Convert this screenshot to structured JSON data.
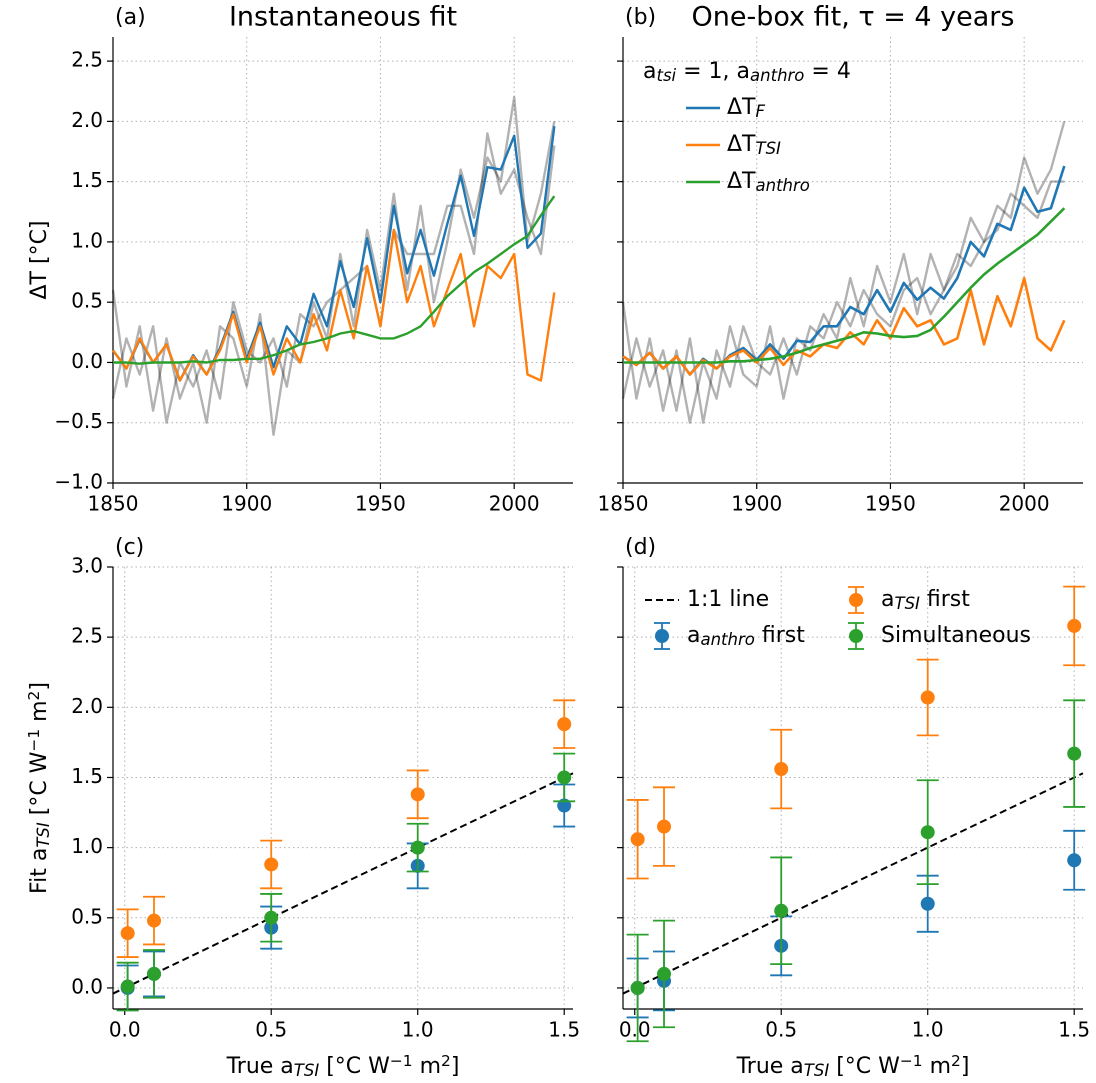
{
  "chart_data": [
    {
      "type": "line",
      "label": "(a)",
      "title": "Instantaneous fit",
      "x": [
        1850,
        1855,
        1860,
        1865,
        1870,
        1875,
        1880,
        1885,
        1890,
        1895,
        1900,
        1905,
        1910,
        1915,
        1920,
        1925,
        1930,
        1935,
        1940,
        1945,
        1950,
        1955,
        1960,
        1965,
        1970,
        1975,
        1980,
        1985,
        1990,
        1995,
        2000,
        2005,
        2010,
        2015
      ],
      "xlim": [
        1850,
        2022
      ],
      "xticks": [
        1850,
        1900,
        1950,
        2000
      ],
      "ylim": [
        -1.0,
        2.7
      ],
      "yticks": [
        {
          "value": -1,
          "label": "−1.0"
        },
        {
          "value": -0.5,
          "label": "−0.5"
        },
        {
          "value": 0,
          "label": "0.0"
        },
        0.5,
        {
          "value": 1,
          "label": "1.0"
        },
        1.5,
        {
          "value": 2,
          "label": "2.0"
        },
        2.5
      ],
      "ylabel": [
        "ΔT [°C]"
      ],
      "grid": true,
      "series": [
        {
          "color": "rgba(0,0,0,0.3)",
          "values": [
            0.6,
            -0.2,
            0.3,
            -0.4,
            0.2,
            -0.3,
            0.0,
            -0.5,
            0.3,
            0.2,
            -0.2,
            0.4,
            -0.6,
            0.1,
            0.0,
            0.5,
            0.2,
            0.9,
            0.3,
            1.1,
            0.6,
            1.4,
            0.6,
            1.3,
            0.5,
            1.0,
            1.6,
            1.2,
            1.7,
            1.5,
            2.2,
            1.0,
            1.4,
            2.0
          ]
        },
        {
          "color": "rgba(0,0,0,0.3)",
          "values": [
            -0.3,
            0.2,
            -0.1,
            0.3,
            -0.5,
            0.0,
            -0.2,
            0.1,
            -0.3,
            0.5,
            0.1,
            0.0,
            0.2,
            -0.2,
            0.4,
            0.3,
            0.5,
            0.6,
            0.7,
            0.8,
            0.3,
            1.1,
            0.9,
            0.9,
            0.9,
            1.3,
            1.3,
            0.9,
            1.9,
            1.4,
            1.6,
            1.2,
            0.9,
            1.8
          ]
        },
        {
          "color": "#1f77b4",
          "values": [
            0.1,
            -0.05,
            0.19,
            0.0,
            0.15,
            -0.15,
            0.06,
            -0.1,
            0.12,
            0.42,
            0.03,
            0.33,
            -0.04,
            0.3,
            0.15,
            0.57,
            0.3,
            0.84,
            0.46,
            1.03,
            0.5,
            1.3,
            0.74,
            1.1,
            0.72,
            1.15,
            1.55,
            1.05,
            1.62,
            1.6,
            1.88,
            0.95,
            1.07,
            1.96
          ]
        },
        {
          "color": "#ff7f0e",
          "values": [
            0.1,
            -0.05,
            0.2,
            0.0,
            0.15,
            -0.15,
            0.05,
            -0.1,
            0.1,
            0.4,
            0.0,
            0.3,
            -0.1,
            0.2,
            0.0,
            0.4,
            0.1,
            0.6,
            0.2,
            0.8,
            0.3,
            1.1,
            0.5,
            0.8,
            0.3,
            0.6,
            0.9,
            0.3,
            0.8,
            0.7,
            0.9,
            -0.1,
            -0.15,
            0.58
          ]
        },
        {
          "color": "#2ca02c",
          "values": [
            0,
            0,
            -0.01,
            0,
            0,
            0,
            0.01,
            0,
            0.02,
            0.02,
            0.03,
            0.03,
            0.06,
            0.1,
            0.15,
            0.17,
            0.2,
            0.24,
            0.26,
            0.23,
            0.2,
            0.2,
            0.24,
            0.3,
            0.42,
            0.55,
            0.65,
            0.75,
            0.82,
            0.9,
            0.98,
            1.05,
            1.22,
            1.38
          ]
        }
      ]
    },
    {
      "type": "line",
      "label": "(b)",
      "title": "One-box fit, τ = 4 years",
      "x": [
        1850,
        1855,
        1860,
        1865,
        1870,
        1875,
        1880,
        1885,
        1890,
        1895,
        1900,
        1905,
        1910,
        1915,
        1920,
        1925,
        1930,
        1935,
        1940,
        1945,
        1950,
        1955,
        1960,
        1965,
        1970,
        1975,
        1980,
        1985,
        1990,
        1995,
        2000,
        2005,
        2010,
        2015
      ],
      "xlim": [
        1850,
        2022
      ],
      "xticks": [
        1850,
        1900,
        1950,
        2000
      ],
      "ylim": [
        -1.0,
        2.7
      ],
      "yticks": [
        {
          "value": -1,
          "label": "−1.0"
        },
        {
          "value": -0.5,
          "label": "−0.5"
        },
        {
          "value": 0,
          "label": "0.0"
        },
        0.5,
        {
          "value": 1,
          "label": "1.0"
        },
        1.5,
        {
          "value": 2,
          "label": "2.0"
        },
        2.5
      ],
      "sharey": true,
      "grid": true,
      "legend": "upper left",
      "annotation": [
        "a",
        {
          "sub": "tsi"
        },
        " = 1, a",
        {
          "sub": "anthro"
        },
        " = 4"
      ],
      "series": [
        {
          "color": "rgba(0,0,0,0.3)",
          "values": [
            0.5,
            -0.3,
            0.2,
            -0.4,
            0.1,
            -0.5,
            0.0,
            -0.3,
            0.3,
            -0.1,
            -0.2,
            0.3,
            -0.3,
            0.2,
            0.1,
            0.4,
            0.2,
            0.7,
            0.3,
            0.8,
            0.5,
            0.9,
            0.4,
            0.9,
            0.6,
            0.8,
            1.2,
            1.0,
            1.3,
            1.2,
            1.7,
            1.4,
            1.6,
            2.0
          ]
        },
        {
          "color": "rgba(0,0,0,0.3)",
          "values": [
            -0.3,
            0.2,
            -0.2,
            0.1,
            -0.4,
            0.2,
            -0.5,
            0.1,
            -0.2,
            0.3,
            0.0,
            -0.1,
            0.2,
            -0.1,
            0.3,
            0.2,
            0.5,
            0.3,
            0.6,
            0.4,
            0.3,
            0.6,
            0.7,
            0.4,
            0.6,
            0.9,
            0.8,
            1.0,
            1.1,
            1.4,
            1.3,
            1.2,
            1.5,
            1.5
          ]
        },
        {
          "name": [
            "ΔT",
            {
              "sub": "F"
            }
          ],
          "color": "#1f77b4",
          "values": [
            0.05,
            -0.02,
            0.08,
            -0.05,
            0.05,
            -0.1,
            0.03,
            -0.05,
            0.06,
            0.12,
            0.02,
            0.15,
            0.03,
            0.18,
            0.17,
            0.3,
            0.3,
            0.46,
            0.4,
            0.6,
            0.42,
            0.66,
            0.52,
            0.62,
            0.53,
            0.7,
            1.0,
            0.88,
            1.15,
            1.1,
            1.45,
            1.25,
            1.28,
            1.63
          ]
        },
        {
          "name": [
            "ΔT",
            {
              "sub": "TSI"
            }
          ],
          "color": "#ff7f0e",
          "values": [
            0.05,
            -0.02,
            0.08,
            -0.05,
            0.05,
            -0.1,
            0.02,
            -0.05,
            0.05,
            0.1,
            0.0,
            0.12,
            -0.02,
            0.1,
            0.05,
            0.15,
            0.12,
            0.25,
            0.15,
            0.35,
            0.2,
            0.45,
            0.3,
            0.35,
            0.15,
            0.2,
            0.6,
            0.15,
            0.55,
            0.3,
            0.7,
            0.2,
            0.1,
            0.35
          ]
        },
        {
          "name": [
            "ΔT",
            {
              "sub": "anthro"
            }
          ],
          "color": "#2ca02c",
          "values": [
            0,
            0,
            0,
            0,
            0,
            0,
            0,
            0,
            0.01,
            0.01,
            0.02,
            0.03,
            0.05,
            0.08,
            0.12,
            0.15,
            0.18,
            0.21,
            0.25,
            0.24,
            0.22,
            0.21,
            0.22,
            0.27,
            0.38,
            0.5,
            0.62,
            0.73,
            0.82,
            0.9,
            0.98,
            1.06,
            1.17,
            1.28
          ]
        }
      ]
    },
    {
      "type": "errorbar",
      "label": "(c)",
      "x": [
        0.01,
        0.1,
        0.5,
        1.0,
        1.5
      ],
      "xlim": [
        -0.04,
        1.53
      ],
      "xticks": [
        {
          "value": 0,
          "label": "0.0"
        },
        0.5,
        {
          "value": 1,
          "label": "1.0"
        },
        1.5
      ],
      "ylim": [
        -0.15,
        3.0
      ],
      "yticks": [
        {
          "value": 0,
          "label": "0.0"
        },
        0.5,
        {
          "value": 1,
          "label": "1.0"
        },
        1.5,
        {
          "value": 2,
          "label": "2.0"
        },
        2.5,
        {
          "value": 3,
          "label": "3.0"
        }
      ],
      "xlabel": [
        "True a",
        {
          "sub": "TSI"
        },
        " [°C W",
        {
          "sup": "−1"
        },
        " m",
        {
          "sup": "2"
        },
        "]"
      ],
      "ylabel": [
        "Fit a",
        {
          "sub": "TSI"
        },
        " [°C W",
        {
          "sup": "−1"
        },
        " m",
        {
          "sup": "2"
        },
        "]"
      ],
      "grid": true,
      "reference_line": {
        "slope": 1,
        "intercept": 0,
        "color": "#000000"
      },
      "series": [
        {
          "color": "#1f77b4",
          "values": [
            0.0,
            0.1,
            0.43,
            0.87,
            1.3
          ],
          "errors": [
            0.16,
            0.16,
            0.15,
            0.16,
            0.15
          ]
        },
        {
          "color": "#ff7f0e",
          "values": [
            0.39,
            0.48,
            0.88,
            1.38,
            1.88
          ],
          "errors": [
            0.17,
            0.17,
            0.17,
            0.17,
            0.17
          ]
        },
        {
          "color": "#2ca02c",
          "values": [
            0.01,
            0.1,
            0.5,
            1.0,
            1.5
          ],
          "errors": [
            0.17,
            0.17,
            0.17,
            0.17,
            0.17
          ]
        }
      ]
    },
    {
      "type": "errorbar",
      "label": "(d)",
      "x": [
        0.01,
        0.1,
        0.5,
        1.0,
        1.5
      ],
      "xlim": [
        -0.04,
        1.53
      ],
      "xticks": [
        {
          "value": 0,
          "label": "0.0"
        },
        0.5,
        {
          "value": 1,
          "label": "1.0"
        },
        1.5
      ],
      "ylim": [
        -0.15,
        3.0
      ],
      "yticks": [
        {
          "value": 0,
          "label": "0.0"
        },
        0.5,
        {
          "value": 1,
          "label": "1.0"
        },
        1.5,
        {
          "value": 2,
          "label": "2.0"
        },
        2.5,
        {
          "value": 3,
          "label": "3.0"
        }
      ],
      "xlabel": [
        "True a",
        {
          "sub": "TSI"
        },
        " [°C W",
        {
          "sup": "−1"
        },
        " m",
        {
          "sup": "2"
        },
        "]"
      ],
      "sharey": true,
      "grid": true,
      "legend": "upper left",
      "reference_line": {
        "name": [
          "1:1 line"
        ],
        "slope": 1,
        "intercept": 0,
        "color": "#000000"
      },
      "series": [
        {
          "name": [
            "a",
            {
              "sub": "anthro"
            },
            " first"
          ],
          "color": "#1f77b4",
          "values": [
            0.0,
            0.05,
            0.3,
            0.6,
            0.91
          ],
          "errors": [
            0.21,
            0.21,
            0.21,
            0.2,
            0.21
          ]
        },
        {
          "name": [
            "a",
            {
              "sub": "TSI"
            },
            " first"
          ],
          "color": "#ff7f0e",
          "values": [
            1.06,
            1.15,
            1.56,
            2.07,
            2.58
          ],
          "errors": [
            0.28,
            0.28,
            0.28,
            0.27,
            0.28
          ]
        },
        {
          "name": [
            "Simultaneous"
          ],
          "color": "#2ca02c",
          "values": [
            0.0,
            0.1,
            0.55,
            1.11,
            1.67
          ],
          "errors": [
            0.38,
            0.38,
            0.38,
            0.37,
            0.38
          ]
        }
      ]
    }
  ]
}
